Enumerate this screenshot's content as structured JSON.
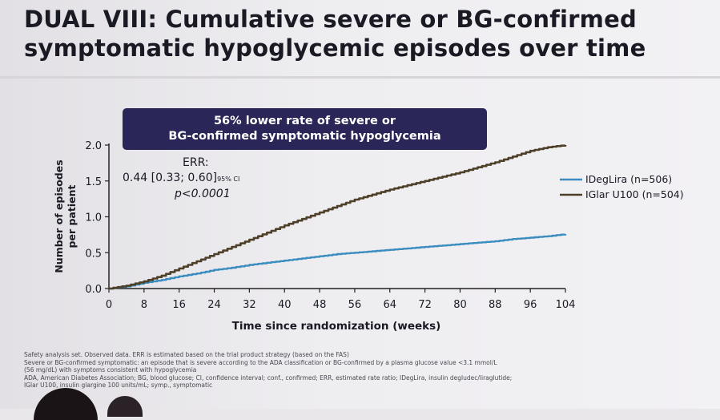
{
  "slide": {
    "title_line1": "DUAL VIII: Cumulative severe or BG-confirmed",
    "title_line2": "symptomatic hypoglycemic episodes over time",
    "banner_line1": "56% lower rate of severe or",
    "banner_line2": "BG-confirmed symptomatic hypoglycemia",
    "err_label": "ERR:",
    "err_values": "0.44 [0.33; 0.60]",
    "err_ci": "95% CI",
    "err_p": "p<0.0001",
    "footnotes": [
      "Safety analysis set. Observed data. ERR is estimated based on the trial product strategy (based on the FAS)",
      "Severe or BG-confirmed symptomatic: an episode that is severe according to the ADA classification or BG-confirmed by a plasma glucose value <3.1 mmol/L",
      "(56 mg/dL) with symptoms consistent with hypoglycemia",
      "ADA, American Diabetes Association; BG, blood glucose; CI, confidence interval; conf., confirmed; ERR, estimated rate ratio; IDegLira, insulin degludec/liraglutide;",
      "IGlar U100, insulin glargine 100 units/mL; symp., symptomatic"
    ]
  },
  "colors": {
    "ideglira": "#3b8cbf",
    "iglar": "#4e4028",
    "axis": "#222222",
    "banner": "#2a2658"
  },
  "chart_data": {
    "type": "line",
    "xlabel": "Time since randomization (weeks)",
    "ylabel_line1": "Number of episodes",
    "ylabel_line2": "per patient",
    "xlim": [
      0,
      104
    ],
    "ylim": [
      0,
      2.0
    ],
    "x_ticks": [
      0,
      8,
      16,
      24,
      32,
      40,
      48,
      56,
      64,
      72,
      80,
      88,
      96,
      104
    ],
    "y_ticks": [
      0.0,
      0.5,
      1.0,
      1.5,
      2.0
    ],
    "y_tick_labels": [
      "0.0",
      "0.5",
      "1.0",
      "1.5",
      "2.0"
    ],
    "legend_position": "right",
    "series": [
      {
        "name": "IDegLira (n=506)",
        "x": [
          0,
          4,
          8,
          12,
          16,
          20,
          24,
          28,
          32,
          36,
          40,
          44,
          48,
          52,
          56,
          60,
          64,
          68,
          72,
          76,
          80,
          84,
          88,
          92,
          96,
          100,
          104
        ],
        "values": [
          0,
          0.03,
          0.08,
          0.12,
          0.17,
          0.21,
          0.26,
          0.29,
          0.33,
          0.36,
          0.39,
          0.42,
          0.45,
          0.48,
          0.5,
          0.52,
          0.54,
          0.56,
          0.58,
          0.6,
          0.62,
          0.64,
          0.66,
          0.69,
          0.71,
          0.73,
          0.76
        ]
      },
      {
        "name": "IGlar U100 (n=504)",
        "x": [
          0,
          4,
          8,
          12,
          16,
          20,
          24,
          28,
          32,
          36,
          40,
          44,
          48,
          52,
          56,
          60,
          64,
          68,
          72,
          76,
          80,
          84,
          88,
          92,
          96,
          100,
          104
        ],
        "values": [
          0,
          0.04,
          0.1,
          0.18,
          0.28,
          0.38,
          0.48,
          0.58,
          0.68,
          0.78,
          0.88,
          0.97,
          1.06,
          1.15,
          1.24,
          1.31,
          1.38,
          1.44,
          1.5,
          1.56,
          1.62,
          1.69,
          1.76,
          1.84,
          1.92,
          1.97,
          2.0
        ]
      }
    ]
  }
}
